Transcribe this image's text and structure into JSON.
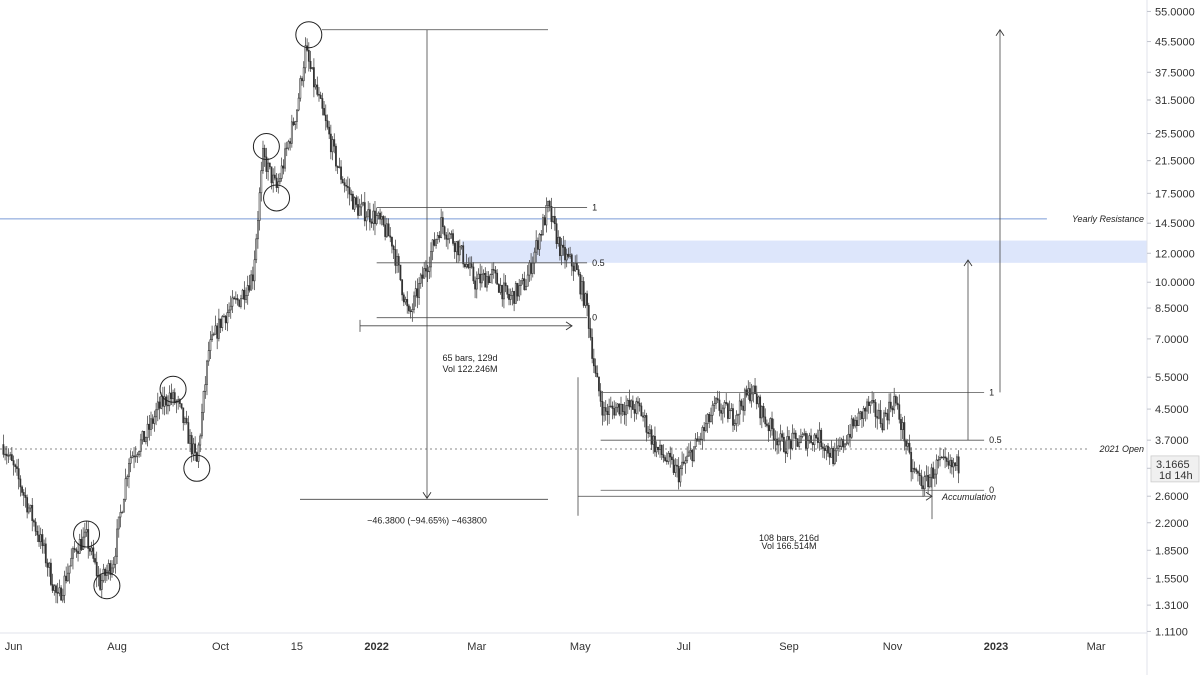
{
  "chart_data": {
    "type": "candlestick",
    "scale": "log",
    "ylim": [
      1.0,
      58.0
    ],
    "xlim": [
      "2021-05-24",
      "2023-03-31"
    ],
    "y_ticks": [
      "55.0000",
      "45.5000",
      "37.5000",
      "31.5000",
      "25.5000",
      "21.5000",
      "17.5000",
      "14.5000",
      "12.0000",
      "10.0000",
      "8.5000",
      "7.0000",
      "5.5000",
      "4.5000",
      "3.7000",
      "3.1000",
      "2.6000",
      "2.2000",
      "1.8500",
      "1.5500",
      "1.3100",
      "1.1100"
    ],
    "x_ticks": [
      {
        "label": "Jun",
        "date": "2021-06-01",
        "bold": false
      },
      {
        "label": "Aug",
        "date": "2021-08-01",
        "bold": false
      },
      {
        "label": "Oct",
        "date": "2021-10-01",
        "bold": false
      },
      {
        "label": "15",
        "date": "2021-11-15",
        "bold": false
      },
      {
        "label": "2022",
        "date": "2022-01-01",
        "bold": true
      },
      {
        "label": "Mar",
        "date": "2022-03-01",
        "bold": false
      },
      {
        "label": "May",
        "date": "2022-05-01",
        "bold": false
      },
      {
        "label": "Jul",
        "date": "2022-07-01",
        "bold": false
      },
      {
        "label": "Sep",
        "date": "2022-09-01",
        "bold": false
      },
      {
        "label": "Nov",
        "date": "2022-11-01",
        "bold": false
      },
      {
        "label": "2023",
        "date": "2023-01-01",
        "bold": true
      },
      {
        "label": "Mar",
        "date": "2023-03-01",
        "bold": false
      }
    ],
    "price_path": [
      [
        "2021-05-26",
        3.6
      ],
      [
        "2021-06-05",
        2.8
      ],
      [
        "2021-06-18",
        1.9
      ],
      [
        "2021-06-27",
        1.35
      ],
      [
        "2021-07-08",
        1.9
      ],
      [
        "2021-07-14",
        2.0
      ],
      [
        "2021-07-22",
        1.5
      ],
      [
        "2021-07-30",
        1.75
      ],
      [
        "2021-08-08",
        3.3
      ],
      [
        "2021-08-18",
        3.8
      ],
      [
        "2021-08-25",
        4.5
      ],
      [
        "2021-09-01",
        4.9
      ],
      [
        "2021-09-06",
        4.6
      ],
      [
        "2021-09-12",
        3.8
      ],
      [
        "2021-09-17",
        3.2
      ],
      [
        "2021-09-24",
        6.5
      ],
      [
        "2021-10-02",
        8.0
      ],
      [
        "2021-10-12",
        9.0
      ],
      [
        "2021-10-20",
        10.5
      ],
      [
        "2021-10-26",
        22.0
      ],
      [
        "2021-11-03",
        18.0
      ],
      [
        "2021-11-08",
        22.0
      ],
      [
        "2021-11-15",
        30.0
      ],
      [
        "2021-11-20",
        43.0
      ],
      [
        "2021-11-25",
        35.0
      ],
      [
        "2021-12-01",
        28.0
      ],
      [
        "2021-12-10",
        20.0
      ],
      [
        "2021-12-20",
        16.0
      ],
      [
        "2022-01-01",
        15.0
      ],
      [
        "2022-01-10",
        13.0
      ],
      [
        "2022-01-20",
        8.0
      ],
      [
        "2022-01-30",
        11.0
      ],
      [
        "2022-02-08",
        14.5
      ],
      [
        "2022-02-18",
        12.5
      ],
      [
        "2022-02-28",
        10.0
      ],
      [
        "2022-03-10",
        10.5
      ],
      [
        "2022-03-20",
        9.0
      ],
      [
        "2022-03-30",
        10.0
      ],
      [
        "2022-04-06",
        13.0
      ],
      [
        "2022-04-12",
        16.0
      ],
      [
        "2022-04-20",
        12.0
      ],
      [
        "2022-04-28",
        11.0
      ],
      [
        "2022-05-05",
        8.5
      ],
      [
        "2022-05-10",
        5.5
      ],
      [
        "2022-05-15",
        4.4
      ],
      [
        "2022-05-25",
        4.6
      ],
      [
        "2022-06-05",
        4.5
      ],
      [
        "2022-06-15",
        3.5
      ],
      [
        "2022-06-28",
        3.0
      ],
      [
        "2022-07-10",
        3.7
      ],
      [
        "2022-07-20",
        4.6
      ],
      [
        "2022-07-30",
        4.3
      ],
      [
        "2022-08-10",
        5.1
      ],
      [
        "2022-08-18",
        4.2
      ],
      [
        "2022-08-28",
        3.6
      ],
      [
        "2022-09-08",
        3.7
      ],
      [
        "2022-09-18",
        3.8
      ],
      [
        "2022-09-28",
        3.3
      ],
      [
        "2022-10-08",
        4.0
      ],
      [
        "2022-10-18",
        4.6
      ],
      [
        "2022-10-26",
        4.2
      ],
      [
        "2022-11-02",
        4.8
      ],
      [
        "2022-11-08",
        3.8
      ],
      [
        "2022-11-12",
        3.1
      ],
      [
        "2022-11-20",
        2.8
      ],
      [
        "2022-11-28",
        3.2
      ],
      [
        "2022-12-04",
        3.1
      ],
      [
        "2022-12-10",
        3.17
      ]
    ],
    "horizontal_lines": [
      {
        "label": "Yearly Resistance",
        "price": 14.9,
        "color": "#7a9bd6",
        "style": "solid"
      },
      {
        "label": "2021 Open",
        "price": 3.5,
        "color": "#888888",
        "style": "dotted"
      }
    ],
    "highlight_zone": {
      "from_date": "2022-02-20",
      "to_date": "2023-05-01",
      "low": 11.3,
      "high": 13.0,
      "color": "#dde6fb"
    },
    "fib_levels": [
      {
        "label": "1",
        "price": 16.0,
        "from_date": "2022-01-01",
        "to_date": "2022-05-05"
      },
      {
        "label": "0.5",
        "price": 11.3,
        "from_date": "2022-01-01",
        "to_date": "2022-05-05"
      },
      {
        "label": "0",
        "price": 8.0,
        "from_date": "2022-01-01",
        "to_date": "2022-05-05"
      },
      {
        "label": "1",
        "price": 5.0,
        "from_date": "2022-05-13",
        "to_date": "2022-12-25"
      },
      {
        "label": "0.5",
        "price": 3.7,
        "from_date": "2022-05-13",
        "to_date": "2022-12-25"
      },
      {
        "label": "0",
        "price": 2.7,
        "from_date": "2022-05-13",
        "to_date": "2022-12-25"
      }
    ],
    "circles": [
      {
        "date": "2021-07-14",
        "price": 2.05
      },
      {
        "date": "2021-07-26",
        "price": 1.48
      },
      {
        "date": "2021-09-03",
        "price": 5.1
      },
      {
        "date": "2021-09-17",
        "price": 3.1
      },
      {
        "date": "2021-10-28",
        "price": 23.5
      },
      {
        "date": "2021-11-03",
        "price": 17.0
      },
      {
        "date": "2021-11-22",
        "price": 47.5
      }
    ],
    "measure_labels": [
      {
        "lines": [
          "65 bars, 129d",
          "Vol 122.246M"
        ],
        "date": "2022-02-25",
        "prices": [
          6.2,
          5.8
        ]
      },
      {
        "lines": [
          "108 bars, 216d"
        ],
        "date": "2022-09-01",
        "prices": [
          2.0
        ]
      },
      {
        "lines": [
          "Vol 166.514M"
        ],
        "date": "2022-09-01",
        "prices": [
          1.9
        ]
      }
    ],
    "drop_label": "−46.3800 (−94.65%) −463800",
    "accumulation_label": "Accumulation",
    "current_price": "3.1665",
    "countdown": "1d 14h"
  }
}
